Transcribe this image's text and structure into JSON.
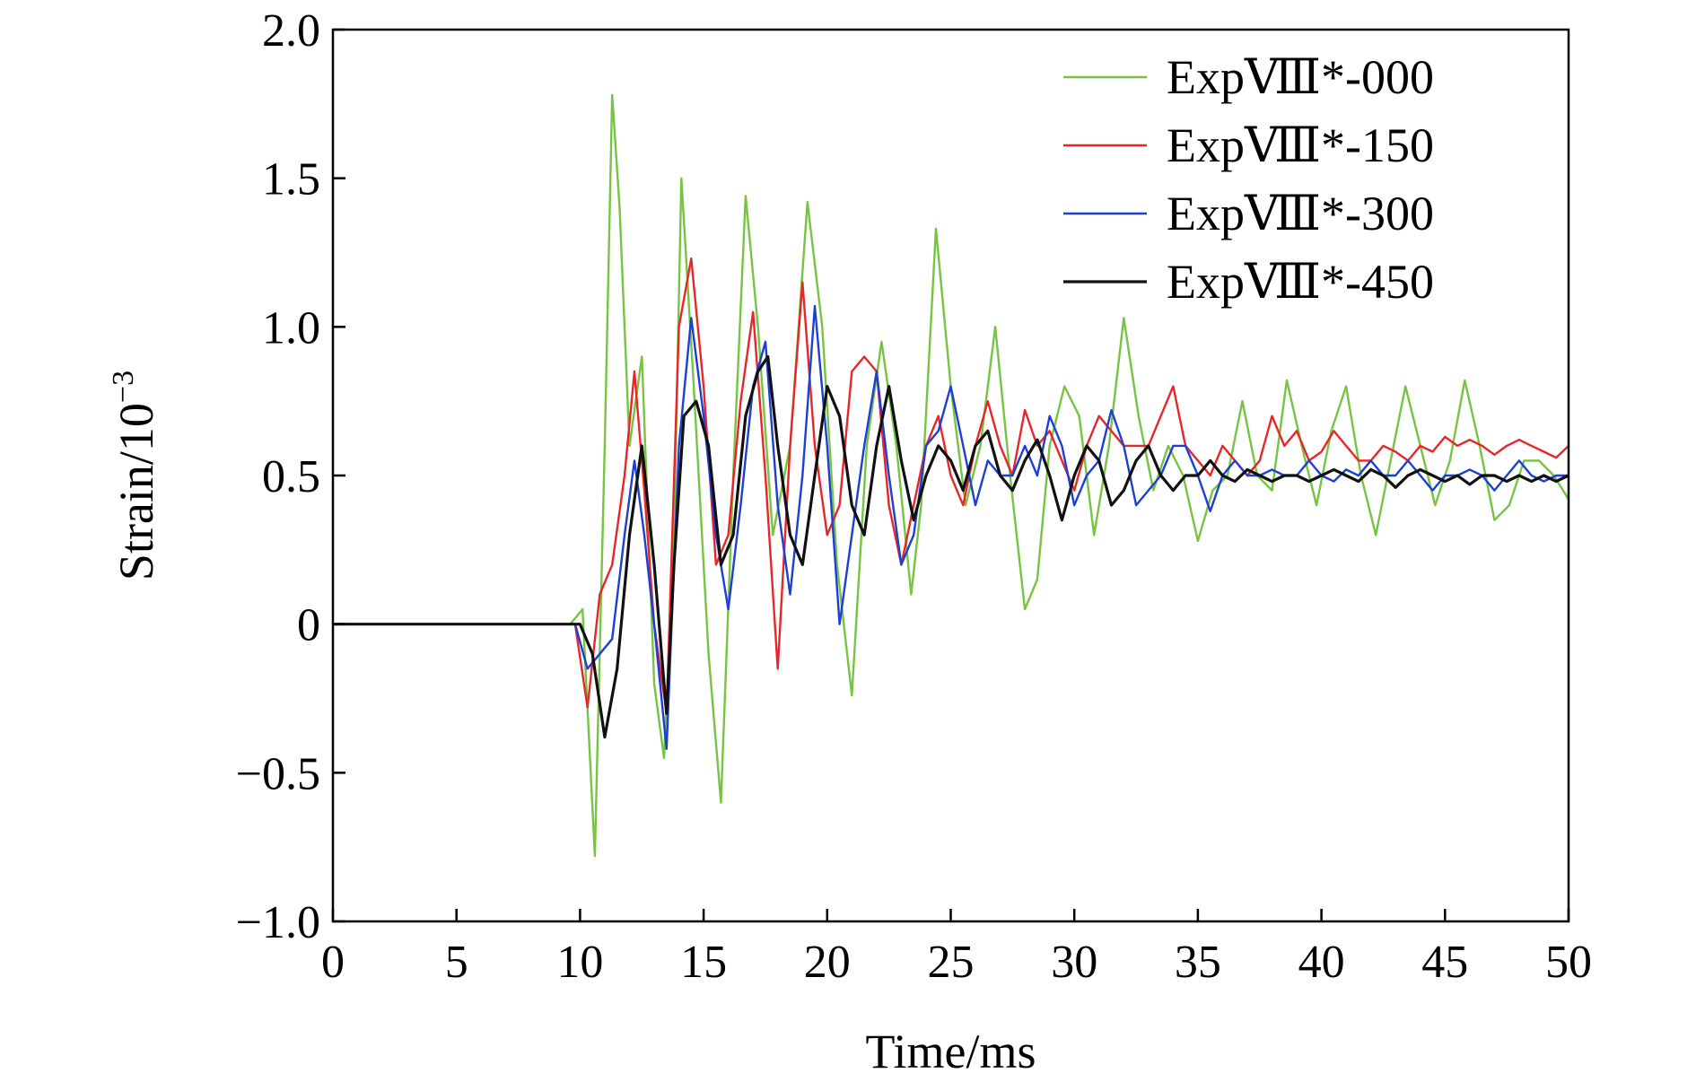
{
  "chart_data": {
    "type": "line",
    "xlabel": "Time/ms",
    "ylabel_base": "Strain/10",
    "ylabel_exp": "−3",
    "xlim": [
      0,
      50
    ],
    "ylim": [
      -1.0,
      2.0
    ],
    "xticks": [
      0,
      5,
      10,
      15,
      20,
      25,
      30,
      35,
      40,
      45,
      50
    ],
    "xtick_labels": [
      "0",
      "5",
      "10",
      "15",
      "20",
      "25",
      "30",
      "35",
      "40",
      "45",
      "50"
    ],
    "yticks": [
      -1.0,
      -0.5,
      0,
      0.5,
      1.0,
      1.5,
      2.0
    ],
    "ytick_labels": [
      "−1.0",
      "−0.5",
      "0",
      "0.5",
      "1.0",
      "1.5",
      "2.0"
    ],
    "grid": false,
    "legend_position": "top-right",
    "series": [
      {
        "name": "ExpⅧ*-000",
        "color": "#76c442",
        "x": [
          0,
          9.6,
          10.1,
          10.6,
          11.0,
          11.3,
          11.6,
          12.0,
          12.5,
          13.0,
          13.4,
          13.8,
          14.1,
          14.6,
          15.2,
          15.7,
          16.2,
          16.7,
          17.2,
          17.8,
          18.5,
          19.2,
          19.8,
          20.4,
          21.0,
          21.6,
          22.2,
          22.8,
          23.4,
          23.8,
          24.4,
          25.0,
          25.6,
          26.2,
          26.8,
          27.4,
          28.0,
          28.5,
          29.0,
          29.6,
          30.2,
          30.8,
          31.4,
          32.0,
          32.6,
          33.2,
          33.8,
          34.4,
          35.0,
          35.6,
          36.2,
          36.8,
          37.4,
          38.0,
          38.6,
          39.2,
          39.8,
          40.4,
          41.0,
          41.6,
          42.2,
          42.8,
          43.4,
          44.0,
          44.6,
          45.2,
          45.8,
          46.4,
          47.0,
          47.6,
          48.2,
          48.8,
          49.4,
          50.0
        ],
        "values": [
          0,
          0,
          0.05,
          -0.78,
          0.6,
          1.78,
          1.4,
          0.6,
          0.9,
          -0.2,
          -0.45,
          0.3,
          1.5,
          0.8,
          -0.1,
          -0.6,
          0.5,
          1.44,
          1.0,
          0.3,
          0.6,
          1.42,
          1.0,
          0.2,
          -0.24,
          0.6,
          0.95,
          0.6,
          0.1,
          0.4,
          1.33,
          0.8,
          0.4,
          0.6,
          1.0,
          0.5,
          0.05,
          0.15,
          0.6,
          0.8,
          0.7,
          0.3,
          0.6,
          1.03,
          0.7,
          0.45,
          0.6,
          0.5,
          0.28,
          0.45,
          0.5,
          0.75,
          0.5,
          0.45,
          0.82,
          0.6,
          0.4,
          0.65,
          0.8,
          0.5,
          0.3,
          0.55,
          0.8,
          0.6,
          0.4,
          0.55,
          0.82,
          0.6,
          0.35,
          0.4,
          0.55,
          0.55,
          0.5,
          0.42
        ]
      },
      {
        "name": "ExpⅧ*-150",
        "color": "#e8262a",
        "x": [
          0,
          9.8,
          10.3,
          10.8,
          11.3,
          11.8,
          12.2,
          12.6,
          13.0,
          13.5,
          14.0,
          14.5,
          15.0,
          15.5,
          16.0,
          16.5,
          17.0,
          17.5,
          18.0,
          18.5,
          19.0,
          19.5,
          20.0,
          20.5,
          21.0,
          21.5,
          22.0,
          22.5,
          23.0,
          23.5,
          24.0,
          24.5,
          25.0,
          25.5,
          26.0,
          26.5,
          27.0,
          27.5,
          28.0,
          28.5,
          29.0,
          29.5,
          30.0,
          30.5,
          31.0,
          31.5,
          32.0,
          32.5,
          33.0,
          33.5,
          34.0,
          34.5,
          35.0,
          35.5,
          36.0,
          36.5,
          37.0,
          37.5,
          38.0,
          38.5,
          39.0,
          39.5,
          40.0,
          40.5,
          41.0,
          41.5,
          42.0,
          42.5,
          43.0,
          43.5,
          44.0,
          44.5,
          45.0,
          45.5,
          46.0,
          46.5,
          47.0,
          47.5,
          48.0,
          48.5,
          49.0,
          49.5,
          50.0
        ],
        "values": [
          0,
          0,
          -0.28,
          0.1,
          0.2,
          0.5,
          0.85,
          0.45,
          0.0,
          -0.3,
          1.0,
          1.23,
          0.8,
          0.2,
          0.3,
          0.75,
          1.05,
          0.5,
          -0.15,
          0.6,
          1.15,
          0.6,
          0.3,
          0.4,
          0.85,
          0.9,
          0.85,
          0.4,
          0.2,
          0.4,
          0.6,
          0.7,
          0.5,
          0.4,
          0.6,
          0.75,
          0.6,
          0.5,
          0.72,
          0.6,
          0.65,
          0.55,
          0.45,
          0.6,
          0.7,
          0.65,
          0.6,
          0.6,
          0.6,
          0.7,
          0.8,
          0.6,
          0.55,
          0.5,
          0.6,
          0.55,
          0.5,
          0.55,
          0.7,
          0.6,
          0.65,
          0.55,
          0.58,
          0.65,
          0.6,
          0.55,
          0.55,
          0.6,
          0.58,
          0.55,
          0.6,
          0.58,
          0.63,
          0.6,
          0.62,
          0.6,
          0.57,
          0.6,
          0.62,
          0.6,
          0.58,
          0.56,
          0.6
        ]
      },
      {
        "name": "ExpⅧ*-300",
        "color": "#1c3fd6",
        "x": [
          0,
          9.8,
          10.3,
          10.8,
          11.3,
          11.8,
          12.2,
          12.6,
          13.0,
          13.5,
          14.0,
          14.5,
          15.0,
          15.5,
          16.0,
          16.5,
          17.0,
          17.5,
          18.0,
          18.5,
          19.0,
          19.5,
          20.0,
          20.5,
          21.0,
          21.5,
          22.0,
          22.5,
          23.0,
          23.5,
          24.0,
          24.5,
          25.0,
          25.5,
          26.0,
          26.5,
          27.0,
          27.5,
          28.0,
          28.5,
          29.0,
          29.5,
          30.0,
          30.5,
          31.0,
          31.5,
          32.0,
          32.5,
          33.0,
          33.5,
          34.0,
          34.5,
          35.0,
          35.5,
          36.0,
          36.5,
          37.0,
          37.5,
          38.0,
          38.5,
          39.0,
          39.5,
          40.0,
          40.5,
          41.0,
          41.5,
          42.0,
          42.5,
          43.0,
          43.5,
          44.0,
          44.5,
          45.0,
          45.5,
          46.0,
          46.5,
          47.0,
          47.5,
          48.0,
          48.5,
          49.0,
          49.5,
          50.0
        ],
        "values": [
          0,
          0,
          -0.15,
          -0.1,
          -0.05,
          0.3,
          0.55,
          0.3,
          0.0,
          -0.42,
          0.6,
          1.03,
          0.7,
          0.3,
          0.05,
          0.4,
          0.8,
          0.95,
          0.4,
          0.1,
          0.5,
          1.07,
          0.6,
          0.0,
          0.3,
          0.6,
          0.85,
          0.5,
          0.2,
          0.3,
          0.6,
          0.65,
          0.8,
          0.6,
          0.4,
          0.55,
          0.5,
          0.5,
          0.6,
          0.5,
          0.7,
          0.6,
          0.4,
          0.5,
          0.55,
          0.72,
          0.6,
          0.4,
          0.45,
          0.5,
          0.6,
          0.6,
          0.5,
          0.38,
          0.5,
          0.55,
          0.5,
          0.5,
          0.52,
          0.5,
          0.5,
          0.55,
          0.5,
          0.48,
          0.52,
          0.5,
          0.55,
          0.5,
          0.5,
          0.55,
          0.5,
          0.45,
          0.5,
          0.5,
          0.52,
          0.5,
          0.45,
          0.5,
          0.55,
          0.5,
          0.48,
          0.5,
          0.5
        ]
      },
      {
        "name": "ExpⅧ*-450",
        "color": "#111111",
        "x": [
          0,
          10.0,
          10.5,
          11.0,
          11.5,
          12.0,
          12.5,
          13.0,
          13.5,
          13.8,
          14.2,
          14.7,
          15.2,
          15.7,
          16.2,
          16.7,
          17.2,
          17.6,
          18.0,
          18.5,
          19.0,
          19.5,
          20.0,
          20.5,
          21.0,
          21.5,
          22.0,
          22.5,
          23.0,
          23.5,
          24.0,
          24.5,
          25.0,
          25.5,
          26.0,
          26.5,
          27.0,
          27.5,
          28.0,
          28.5,
          29.0,
          29.5,
          30.0,
          30.5,
          31.0,
          31.5,
          32.0,
          32.5,
          33.0,
          33.5,
          34.0,
          34.5,
          35.0,
          35.5,
          36.0,
          36.5,
          37.0,
          37.5,
          38.0,
          38.5,
          39.0,
          39.5,
          40.0,
          40.5,
          41.0,
          41.5,
          42.0,
          42.5,
          43.0,
          43.5,
          44.0,
          44.5,
          45.0,
          45.5,
          46.0,
          46.5,
          47.0,
          47.5,
          48.0,
          48.5,
          49.0,
          49.5,
          50.0
        ],
        "values": [
          0,
          0,
          -0.1,
          -0.38,
          -0.15,
          0.3,
          0.6,
          0.2,
          -0.3,
          0.2,
          0.7,
          0.75,
          0.6,
          0.2,
          0.3,
          0.7,
          0.85,
          0.9,
          0.6,
          0.3,
          0.2,
          0.5,
          0.8,
          0.7,
          0.4,
          0.3,
          0.6,
          0.8,
          0.55,
          0.35,
          0.5,
          0.6,
          0.55,
          0.45,
          0.6,
          0.65,
          0.5,
          0.45,
          0.55,
          0.62,
          0.5,
          0.35,
          0.5,
          0.6,
          0.55,
          0.4,
          0.45,
          0.55,
          0.6,
          0.5,
          0.45,
          0.5,
          0.5,
          0.55,
          0.5,
          0.48,
          0.52,
          0.5,
          0.48,
          0.5,
          0.5,
          0.48,
          0.5,
          0.52,
          0.5,
          0.48,
          0.52,
          0.5,
          0.46,
          0.5,
          0.52,
          0.5,
          0.48,
          0.5,
          0.47,
          0.5,
          0.5,
          0.48,
          0.5,
          0.48,
          0.5,
          0.48,
          0.5
        ]
      }
    ]
  }
}
